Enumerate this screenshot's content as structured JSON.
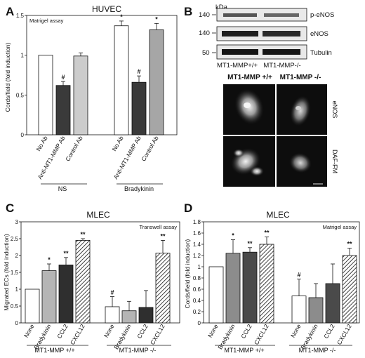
{
  "panels": {
    "a": {
      "letter": "A",
      "title": "HUVEC",
      "annotation": "Matrigel assay"
    },
    "b": {
      "letter": "B"
    },
    "c": {
      "letter": "C",
      "title": "MLEC",
      "annotation": "Transwell assay"
    },
    "d": {
      "letter": "D",
      "title": "MLEC",
      "annotation": "Matrigel assay"
    }
  },
  "western": {
    "kda_label": "kDa",
    "markers": [
      "140",
      "140",
      "50"
    ],
    "bands": [
      "p-eNOS",
      "eNOS",
      "Tubulin"
    ],
    "lanes": [
      "MT1-MMP+/+",
      "MT1-MMP-/-"
    ]
  },
  "micrographs": {
    "columns": [
      "MT1-MMP +/+",
      "MT1-MMP -/-"
    ],
    "rows": [
      "eNOS",
      "DAF-FM"
    ]
  },
  "chart_data": [
    {
      "type": "bar",
      "panel": "A",
      "ylabel": "Cords/field (fold induction)",
      "ylim": [
        0,
        1.5
      ],
      "yticks": [
        "0",
        "0.5",
        "1",
        "1.5"
      ],
      "categories": [
        "No Ab",
        "Anti-MT1-MMP Ab",
        "Control Ab",
        "No Ab",
        "Anti-MT1-MMP Ab",
        "Control Ab"
      ],
      "groups": [
        "NS",
        "Bradykinin"
      ],
      "values": [
        1.0,
        0.62,
        0.99,
        1.37,
        0.66,
        1.32
      ],
      "errors": [
        0.0,
        0.05,
        0.04,
        0.06,
        0.08,
        0.08
      ],
      "marks": [
        "",
        "#",
        "",
        "*",
        "#",
        "*"
      ],
      "colors": [
        "#ffffff",
        "#3a3a3a",
        "#cccccc",
        "#ffffff",
        "#3a3a3a",
        "#a6a6a6"
      ]
    },
    {
      "type": "bar",
      "panel": "C",
      "ylabel": "Migrated ECs (fold induction)",
      "ylim": [
        0,
        3
      ],
      "yticks": [
        "0",
        "0.5",
        "1",
        "1.5",
        "2",
        "2.5",
        "3"
      ],
      "categories": [
        "None",
        "Bradykinin",
        "CCL2",
        "CXCL12",
        "None",
        "Bradykinin",
        "CCL2",
        "CXCL12"
      ],
      "groups": [
        "MT1-MMP +/+",
        "MT1-MMP -/-"
      ],
      "values": [
        1.0,
        1.55,
        1.72,
        2.45,
        0.48,
        0.36,
        0.46,
        2.07
      ],
      "errors": [
        0.0,
        0.2,
        0.22,
        0.05,
        0.3,
        0.28,
        0.5,
        0.38
      ],
      "marks": [
        "",
        "*",
        "**",
        "**",
        "#",
        "",
        "",
        "**"
      ],
      "colors": [
        "#ffffff",
        "#b5b5b5",
        "#2f2f2f",
        "hatch",
        "#ffffff",
        "#b5b5b5",
        "#2f2f2f",
        "hatch"
      ]
    },
    {
      "type": "bar",
      "panel": "D",
      "ylabel": "Cords/field (fold induction)",
      "ylim": [
        0,
        1.8
      ],
      "yticks": [
        "0",
        "0.2",
        "0.4",
        "0.6",
        "0.8",
        "1",
        "1.2",
        "1.4",
        "1.6",
        "1.8"
      ],
      "categories": [
        "None",
        "Bradykinin",
        "CCL2",
        "CXCL12",
        "None",
        "Bradykinin",
        "CCL2",
        "CXCL12"
      ],
      "groups": [
        "MT1-MMP +/+",
        "MT1-MMP -/-"
      ],
      "values": [
        1.0,
        1.24,
        1.26,
        1.4,
        0.48,
        0.45,
        0.7,
        1.2
      ],
      "errors": [
        0.0,
        0.24,
        0.08,
        0.13,
        0.3,
        0.25,
        0.35,
        0.13
      ],
      "marks": [
        "",
        "*",
        "**",
        "**",
        "#",
        "",
        "",
        "**"
      ],
      "colors": [
        "#ffffff",
        "#8c8c8c",
        "#4a4a4a",
        "hatch",
        "#ffffff",
        "#8c8c8c",
        "#4a4a4a",
        "hatch"
      ]
    }
  ]
}
